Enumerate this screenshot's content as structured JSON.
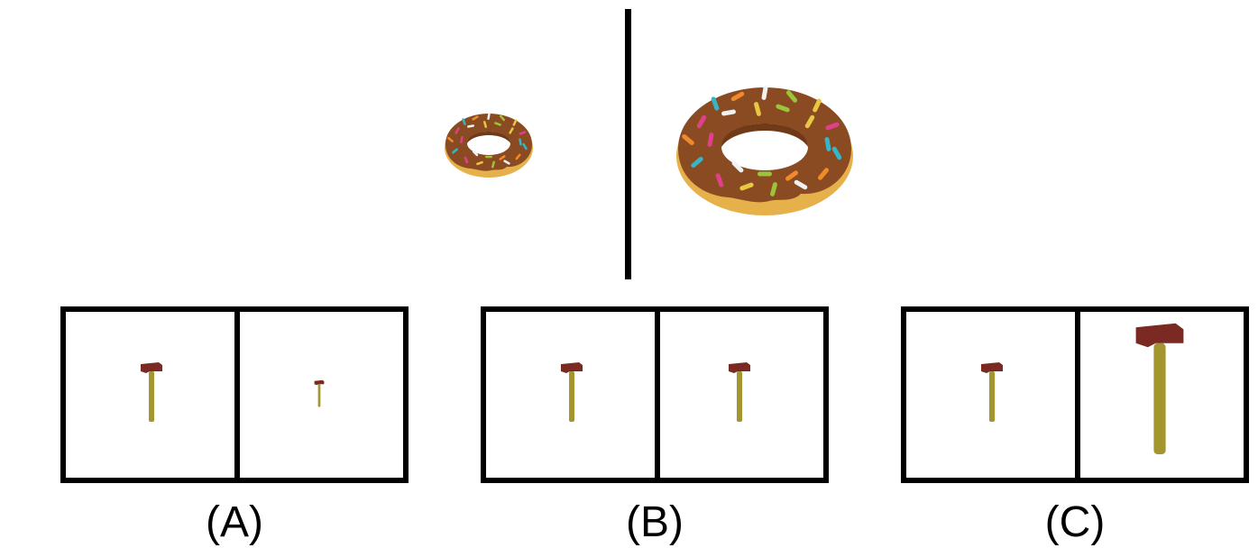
{
  "options": [
    {
      "label": "(A)",
      "left_scale": 1.0,
      "right_scale": 0.45
    },
    {
      "label": "(B)",
      "left_scale": 1.0,
      "right_scale": 1.0
    },
    {
      "label": "(C)",
      "left_scale": 1.0,
      "right_scale": 2.2
    }
  ],
  "colors": {
    "dough": "#e6b04a",
    "icing": "#8a4b22",
    "hammer_head": "#7a2a22",
    "hammer_handle": "#a3962f"
  },
  "sprinkle_colors": [
    "#e0408a",
    "#35b5c8",
    "#f08a2a",
    "#f2f2f2",
    "#9bc43a",
    "#e8c840"
  ]
}
